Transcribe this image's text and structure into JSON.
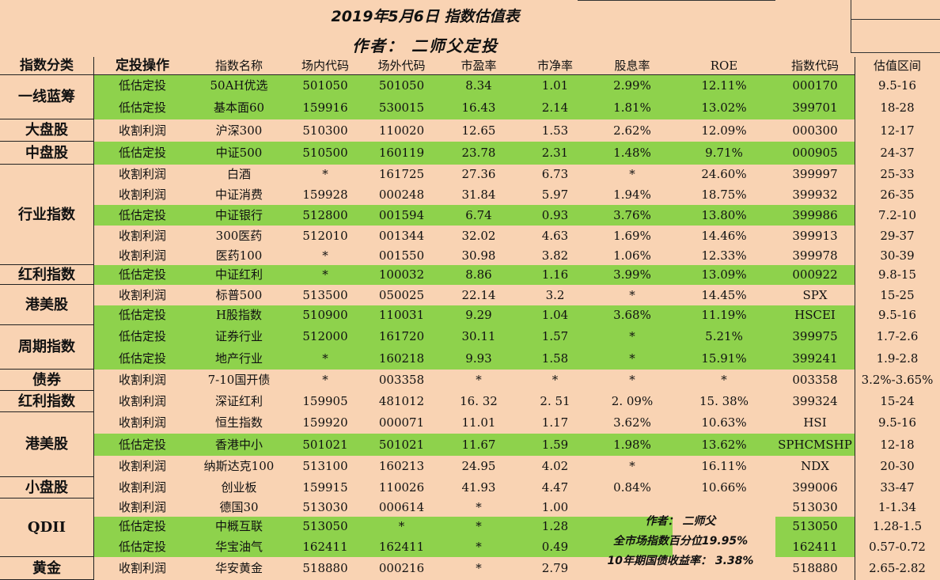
{
  "title": "2019年5月6日 指数估值表",
  "author_line": "作者： 二师父定投",
  "headers": [
    "指数分类",
    "定投操作",
    "指数名称",
    "场内代码",
    "场外代码",
    "市盈率",
    "市净率",
    "股息率",
    "ROE",
    "指数代码",
    "估值区间"
  ],
  "rows": [
    {
      "op": "低估定投",
      "name": "50AH优选",
      "in": "501050",
      "out": "501050",
      "pe": "8.34",
      "pb": "1.01",
      "div": "2.99%",
      "roe": "12.11%",
      "code": "000170",
      "range": "9.5-16",
      "hl": true
    },
    {
      "op": "低估定投",
      "name": "基本面60",
      "in": "159916",
      "out": "530015",
      "pe": "16.43",
      "pb": "2.14",
      "div": "1.81%",
      "roe": "13.02%",
      "code": "399701",
      "range": "18-28",
      "hl": true
    },
    {
      "op": "收割利润",
      "name": "沪深300",
      "in": "510300",
      "out": "110020",
      "pe": "12.65",
      "pb": "1.53",
      "div": "2.62%",
      "roe": "12.09%",
      "code": "000300",
      "range": "12-17",
      "hl": false
    },
    {
      "op": "低估定投",
      "name": "中证500",
      "in": "510500",
      "out": "160119",
      "pe": "23.78",
      "pb": "2.31",
      "div": "1.48%",
      "roe": "9.71%",
      "code": "000905",
      "range": "24-37",
      "hl": true
    },
    {
      "op": "收割利润",
      "name": "白酒",
      "in": "*",
      "out": "161725",
      "pe": "27.36",
      "pb": "6.73",
      "div": "*",
      "roe": "24.60%",
      "code": "399997",
      "range": "25-33",
      "hl": false
    },
    {
      "op": "收割利润",
      "name": "中证消费",
      "in": "159928",
      "out": "000248",
      "pe": "31.84",
      "pb": "5.97",
      "div": "1.94%",
      "roe": "18.75%",
      "code": "399932",
      "range": "26-35",
      "hl": false
    },
    {
      "op": "低估定投",
      "name": "中证银行",
      "in": "512800",
      "out": "001594",
      "pe": "6.74",
      "pb": "0.93",
      "div": "3.76%",
      "roe": "13.80%",
      "code": "399986",
      "range": "7.2-10",
      "hl": true
    },
    {
      "op": "收割利润",
      "name": "300医药",
      "in": "512010",
      "out": "001344",
      "pe": "32.02",
      "pb": "4.63",
      "div": "1.69%",
      "roe": "14.46%",
      "code": "399913",
      "range": "29-37",
      "hl": false
    },
    {
      "op": "收割利润",
      "name": "医药100",
      "in": "*",
      "out": "001550",
      "pe": "30.98",
      "pb": "3.82",
      "div": "1.06%",
      "roe": "12.33%",
      "code": "399978",
      "range": "30-39",
      "hl": false
    },
    {
      "op": "低估定投",
      "name": "中证红利",
      "in": "*",
      "out": "100032",
      "pe": "8.86",
      "pb": "1.16",
      "div": "3.99%",
      "roe": "13.09%",
      "code": "000922",
      "range": "9.8-15",
      "hl": true
    },
    {
      "op": "收割利润",
      "name": "标普500",
      "in": "513500",
      "out": "050025",
      "pe": "22.14",
      "pb": "3.2",
      "div": "*",
      "roe": "14.45%",
      "code": "SPX",
      "range": "15-25",
      "hl": false
    },
    {
      "op": "低估定投",
      "name": "H股指数",
      "in": "510900",
      "out": "110031",
      "pe": "9.29",
      "pb": "1.04",
      "div": "3.68%",
      "roe": "11.19%",
      "code": "HSCEI",
      "range": "9.5-16",
      "hl": true
    },
    {
      "op": "低估定投",
      "name": "证券行业",
      "in": "512000",
      "out": "161720",
      "pe": "30.11",
      "pb": "1.57",
      "div": "*",
      "roe": "5.21%",
      "code": "399975",
      "range": "1.7-2.6",
      "hl": true
    },
    {
      "op": "低估定投",
      "name": "地产行业",
      "in": "*",
      "out": "160218",
      "pe": "9.93",
      "pb": "1.58",
      "div": "*",
      "roe": "15.91%",
      "code": "399241",
      "range": "1.9-2.8",
      "hl": true
    },
    {
      "op": "收割利润",
      "name": "7-10国开债",
      "in": "*",
      "out": "003358",
      "pe": "*",
      "pb": "*",
      "div": "*",
      "roe": "*",
      "code": "003358",
      "range": "3.2%-3.65%",
      "hl": false
    },
    {
      "op": "收割利润",
      "name": "深证红利",
      "in": "159905",
      "out": "481012",
      "pe": "16. 32",
      "pb": "2. 51",
      "div": "2. 09%",
      "roe": "15. 38%",
      "code": "399324",
      "range": "15-24",
      "hl": false
    },
    {
      "op": "收割利润",
      "name": "恒生指数",
      "in": "159920",
      "out": "000071",
      "pe": "11.01",
      "pb": "1.17",
      "div": "3.62%",
      "roe": "10.63%",
      "code": "HSI",
      "range": "9.5-16",
      "hl": false
    },
    {
      "op": "低估定投",
      "name": "香港中小",
      "in": "501021",
      "out": "501021",
      "pe": "11.67",
      "pb": "1.59",
      "div": "1.98%",
      "roe": "13.62%",
      "code": "SPHCMSHP",
      "range": "12-18",
      "hl": true
    },
    {
      "op": "收割利润",
      "name": "纳斯达克100",
      "in": "513100",
      "out": "160213",
      "pe": "24.95",
      "pb": "4.02",
      "div": "*",
      "roe": "16.11%",
      "code": "NDX",
      "range": "20-30",
      "hl": false
    },
    {
      "op": "收割利润",
      "name": "创业板",
      "in": "159915",
      "out": "110026",
      "pe": "41.93",
      "pb": "4.47",
      "div": "0.84%",
      "roe": "10.66%",
      "code": "399006",
      "range": "33-47",
      "hl": false
    },
    {
      "op": "收割利润",
      "name": "德国30",
      "in": "513030",
      "out": "000614",
      "pe": "*",
      "pb": "1.00",
      "div": "",
      "roe": "",
      "code": "513030",
      "range": "1-1.34",
      "hl": false
    },
    {
      "op": "低估定投",
      "name": "中概互联",
      "in": "513050",
      "out": "*",
      "pe": "*",
      "pb": "1.28",
      "div": "",
      "roe": "",
      "code": "513050",
      "range": "1.28-1.5",
      "hl": true
    },
    {
      "op": "低估定投",
      "name": "华宝油气",
      "in": "162411",
      "out": "162411",
      "pe": "*",
      "pb": "0.49",
      "div": "",
      "roe": "",
      "code": "162411",
      "range": "0.57-0.72",
      "hl": true
    },
    {
      "op": "收割利润",
      "name": "华安黄金",
      "in": "518880",
      "out": "000216",
      "pe": "*",
      "pb": "2.79",
      "div": "",
      "roe": "",
      "code": "518880",
      "range": "2.65-2.82",
      "hl": false
    }
  ],
  "categories": [
    "一线蓝筹",
    "大盘股",
    "中盘股",
    "行业指数",
    "红利指数",
    "港美股",
    "周期指数",
    "债券",
    "红利指数",
    "港美股",
    "小盘股",
    "QDII",
    "黄金"
  ],
  "notes": [
    "作者： 二师父",
    "全市场指数百分位19.95%",
    "10年期国债收益率： 3.38%"
  ]
}
